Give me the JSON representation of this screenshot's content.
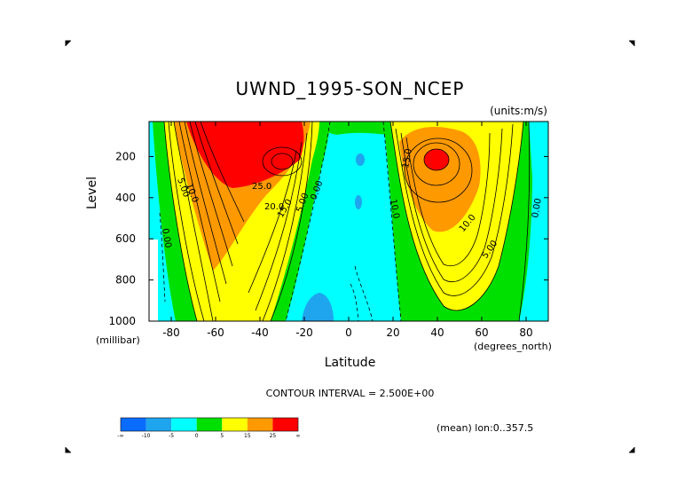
{
  "title": "UWND_1995-SON_NCEP",
  "units_label": "(units:m/s)",
  "ylabel": "Level",
  "yunit": "(millibar)",
  "xlabel": "Latitude",
  "xunit": "(degrees_north)",
  "contour_interval_label": "CONTOUR INTERVAL = 2.500E+00",
  "mean_label": "(mean) lon:0..357.5",
  "chart_data": {
    "type": "heatmap",
    "title": "UWND_1995-SON_NCEP",
    "xlabel": "Latitude",
    "ylabel": "Level",
    "xlim": [
      -90,
      90
    ],
    "ylim": [
      1000,
      30
    ],
    "xticks": [
      -80,
      -60,
      -40,
      -20,
      0,
      20,
      40,
      60,
      80
    ],
    "yticks": [
      200,
      400,
      600,
      800,
      1000
    ],
    "contour_interval": 2.5,
    "contour_labels": [
      "25.0",
      "20.0",
      "15.0",
      "10.0",
      "5.00",
      "0.00",
      "10.0",
      "5.00",
      "0.00",
      "15.0",
      "10.0",
      "5.00",
      "0.00"
    ],
    "jets": [
      {
        "lat": -30,
        "level": 200,
        "max": 30
      },
      {
        "lat": 40,
        "level": 200,
        "max": 27
      }
    ],
    "colorbar": {
      "colors": [
        "#0a6cff",
        "#1fa5ee",
        "#00ffff",
        "#00e000",
        "#ffff00",
        "#ff9900",
        "#ff0000"
      ],
      "tick_labels": [
        "-∞",
        "-10",
        "-5",
        "0",
        "5",
        "15",
        "25",
        "∞"
      ]
    }
  }
}
